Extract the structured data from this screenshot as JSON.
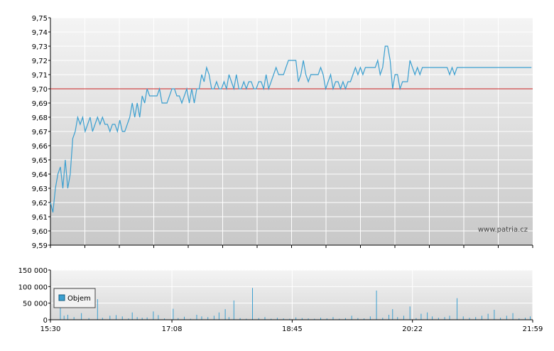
{
  "watermark": "www.patria.cz",
  "colors": {
    "price_line": "#3a9fd0",
    "reference_line": "#cc2222",
    "volume_bar": "#3a9fd0",
    "grid": "#ffffff",
    "bg_top": "#f4f4f4",
    "bg_bottom": "#c8c8c8"
  },
  "chart_data": [
    {
      "type": "line",
      "title": "",
      "xlabel": "",
      "ylabel": "",
      "ylim": [
        9.59,
        9.75
      ],
      "y_ticks": [
        "9,75",
        "9,74",
        "9,73",
        "9,72",
        "9,71",
        "9,70",
        "9,69",
        "9,68",
        "9,67",
        "9,66",
        "9,65",
        "9,64",
        "9,63",
        "9,62",
        "9,61",
        "9,60",
        "9,59"
      ],
      "x_range_minutes": [
        930,
        1319
      ],
      "reference_value": 9.7,
      "grid": true,
      "series": [
        {
          "x_minutes": [
            930,
            932,
            934,
            936,
            938,
            940,
            942,
            944,
            946,
            948,
            950,
            952,
            954,
            956,
            958,
            960,
            962,
            964,
            966,
            968,
            970,
            972,
            974,
            976,
            978,
            980,
            982,
            984,
            986,
            988,
            990,
            992,
            994,
            996,
            998,
            1000,
            1002,
            1004,
            1006,
            1008,
            1010,
            1012,
            1014,
            1016,
            1018,
            1020,
            1022,
            1024,
            1026,
            1028,
            1030,
            1032,
            1034,
            1036,
            1038,
            1040,
            1042,
            1044,
            1046,
            1048,
            1050,
            1052,
            1054,
            1056,
            1058,
            1060,
            1062,
            1064,
            1066,
            1068,
            1070,
            1072,
            1074,
            1076,
            1078,
            1080,
            1082,
            1084,
            1086,
            1088,
            1090,
            1092,
            1094,
            1096,
            1098,
            1100,
            1102,
            1104,
            1106,
            1108,
            1110,
            1112,
            1114,
            1116,
            1118,
            1120,
            1122,
            1124,
            1126,
            1128,
            1130,
            1132,
            1134,
            1136,
            1138,
            1140,
            1142,
            1144,
            1146,
            1148,
            1150,
            1152,
            1154,
            1156,
            1158,
            1160,
            1162,
            1164,
            1166,
            1168,
            1170,
            1172,
            1174,
            1176,
            1178,
            1180,
            1182,
            1184,
            1186,
            1188,
            1190,
            1192,
            1194,
            1196,
            1198,
            1200,
            1202,
            1204,
            1206,
            1208,
            1210,
            1212,
            1214,
            1216,
            1218,
            1220,
            1222,
            1224,
            1226,
            1228,
            1230,
            1232,
            1234,
            1236,
            1238,
            1240,
            1242,
            1244,
            1246,
            1248,
            1250,
            1252,
            1254,
            1256,
            1258,
            1260,
            1262,
            1264,
            1266,
            1268,
            1270,
            1272,
            1274,
            1276,
            1278,
            1280,
            1282,
            1284,
            1286,
            1288,
            1290,
            1292,
            1294,
            1296,
            1298,
            1300,
            1302,
            1304,
            1306,
            1308,
            1310,
            1312,
            1314,
            1316,
            1318
          ],
          "values": [
            9.62,
            9.613,
            9.63,
            9.64,
            9.645,
            9.63,
            9.65,
            9.63,
            9.64,
            9.665,
            9.67,
            9.68,
            9.675,
            9.68,
            9.67,
            9.675,
            9.68,
            9.67,
            9.675,
            9.68,
            9.675,
            9.68,
            9.675,
            9.675,
            9.67,
            9.675,
            9.675,
            9.67,
            9.678,
            9.67,
            9.67,
            9.675,
            9.68,
            9.69,
            9.68,
            9.69,
            9.68,
            9.695,
            9.69,
            9.7,
            9.695,
            9.695,
            9.695,
            9.695,
            9.7,
            9.69,
            9.69,
            9.69,
            9.695,
            9.7,
            9.7,
            9.695,
            9.695,
            9.69,
            9.695,
            9.7,
            9.69,
            9.7,
            9.69,
            9.7,
            9.7,
            9.71,
            9.705,
            9.715,
            9.71,
            9.7,
            9.7,
            9.705,
            9.7,
            9.7,
            9.705,
            9.7,
            9.71,
            9.705,
            9.7,
            9.71,
            9.7,
            9.7,
            9.705,
            9.7,
            9.705,
            9.705,
            9.7,
            9.7,
            9.705,
            9.705,
            9.7,
            9.71,
            9.7,
            9.705,
            9.71,
            9.715,
            9.71,
            9.71,
            9.71,
            9.715,
            9.72,
            9.72,
            9.72,
            9.72,
            9.705,
            9.71,
            9.72,
            9.71,
            9.705,
            9.71,
            9.71,
            9.71,
            9.71,
            9.715,
            9.71,
            9.7,
            9.705,
            9.71,
            9.7,
            9.705,
            9.705,
            9.7,
            9.705,
            9.7,
            9.705,
            9.705,
            9.71,
            9.715,
            9.71,
            9.715,
            9.71,
            9.715,
            9.715,
            9.715,
            9.715,
            9.715,
            9.72,
            9.71,
            9.715,
            9.73,
            9.73,
            9.72,
            9.7,
            9.71,
            9.71,
            9.7,
            9.705,
            9.705,
            9.705,
            9.72,
            9.715,
            9.71,
            9.715,
            9.71,
            9.715,
            9.715,
            9.715,
            9.715,
            9.715,
            9.715,
            9.715,
            9.715,
            9.715,
            9.715,
            9.715,
            9.71,
            9.715,
            9.71,
            9.715,
            9.715,
            9.715,
            9.715,
            9.715,
            9.715,
            9.715,
            9.715,
            9.715,
            9.715,
            9.715,
            9.715,
            9.715,
            9.715,
            9.715,
            9.715,
            9.715,
            9.715,
            9.715,
            9.715,
            9.715,
            9.715,
            9.715,
            9.715,
            9.715,
            9.715,
            9.715,
            9.715,
            9.715,
            9.715,
            9.715
          ]
        }
      ]
    },
    {
      "type": "bar",
      "title": "",
      "xlabel": "",
      "ylabel": "",
      "ylim": [
        0,
        150000
      ],
      "y_ticks": [
        "150 000",
        "100 000",
        "50 000",
        "0"
      ],
      "x_ticks": [
        "15:30",
        "17:08",
        "18:45",
        "20:22",
        "21:59"
      ],
      "x_tick_minutes": [
        930,
        1028,
        1125,
        1222,
        1319
      ],
      "grid": true,
      "legend": {
        "label": "Objem",
        "position": "top-left"
      },
      "series": [
        {
          "name": "Objem",
          "x_minutes": [
            938,
            941,
            944,
            949,
            955,
            961,
            968,
            972,
            978,
            983,
            988,
            993,
            996,
            1000,
            1004,
            1008,
            1013,
            1017,
            1022,
            1029,
            1033,
            1038,
            1043,
            1048,
            1052,
            1057,
            1062,
            1066,
            1071,
            1074,
            1078,
            1083,
            1088,
            1093,
            1098,
            1103,
            1108,
            1113,
            1118,
            1123,
            1128,
            1133,
            1138,
            1143,
            1148,
            1153,
            1158,
            1163,
            1168,
            1173,
            1178,
            1183,
            1188,
            1193,
            1198,
            1203,
            1206,
            1210,
            1215,
            1220,
            1225,
            1229,
            1234,
            1238,
            1243,
            1248,
            1252,
            1258,
            1263,
            1268,
            1273,
            1278,
            1283,
            1288,
            1293,
            1298,
            1303,
            1308,
            1313,
            1317
          ],
          "values": [
            62000,
            12000,
            15000,
            8000,
            20000,
            5000,
            62000,
            6000,
            12000,
            14000,
            10000,
            4000,
            22000,
            8000,
            6000,
            7000,
            25000,
            14000,
            4000,
            33000,
            5000,
            9000,
            3000,
            15000,
            10000,
            8000,
            12000,
            22000,
            32000,
            8000,
            58000,
            5000,
            3000,
            96000,
            5000,
            8000,
            3000,
            6000,
            4000,
            3000,
            7000,
            5000,
            4000,
            3000,
            6000,
            4000,
            8000,
            3000,
            5000,
            12000,
            5000,
            4000,
            10000,
            88000,
            6000,
            15000,
            32000,
            8000,
            12000,
            40000,
            5000,
            18000,
            22000,
            10000,
            6000,
            8000,
            12000,
            65000,
            10000,
            6000,
            8000,
            12000,
            18000,
            30000,
            6000,
            12000,
            20000,
            4000,
            6000,
            10000
          ]
        }
      ]
    }
  ]
}
